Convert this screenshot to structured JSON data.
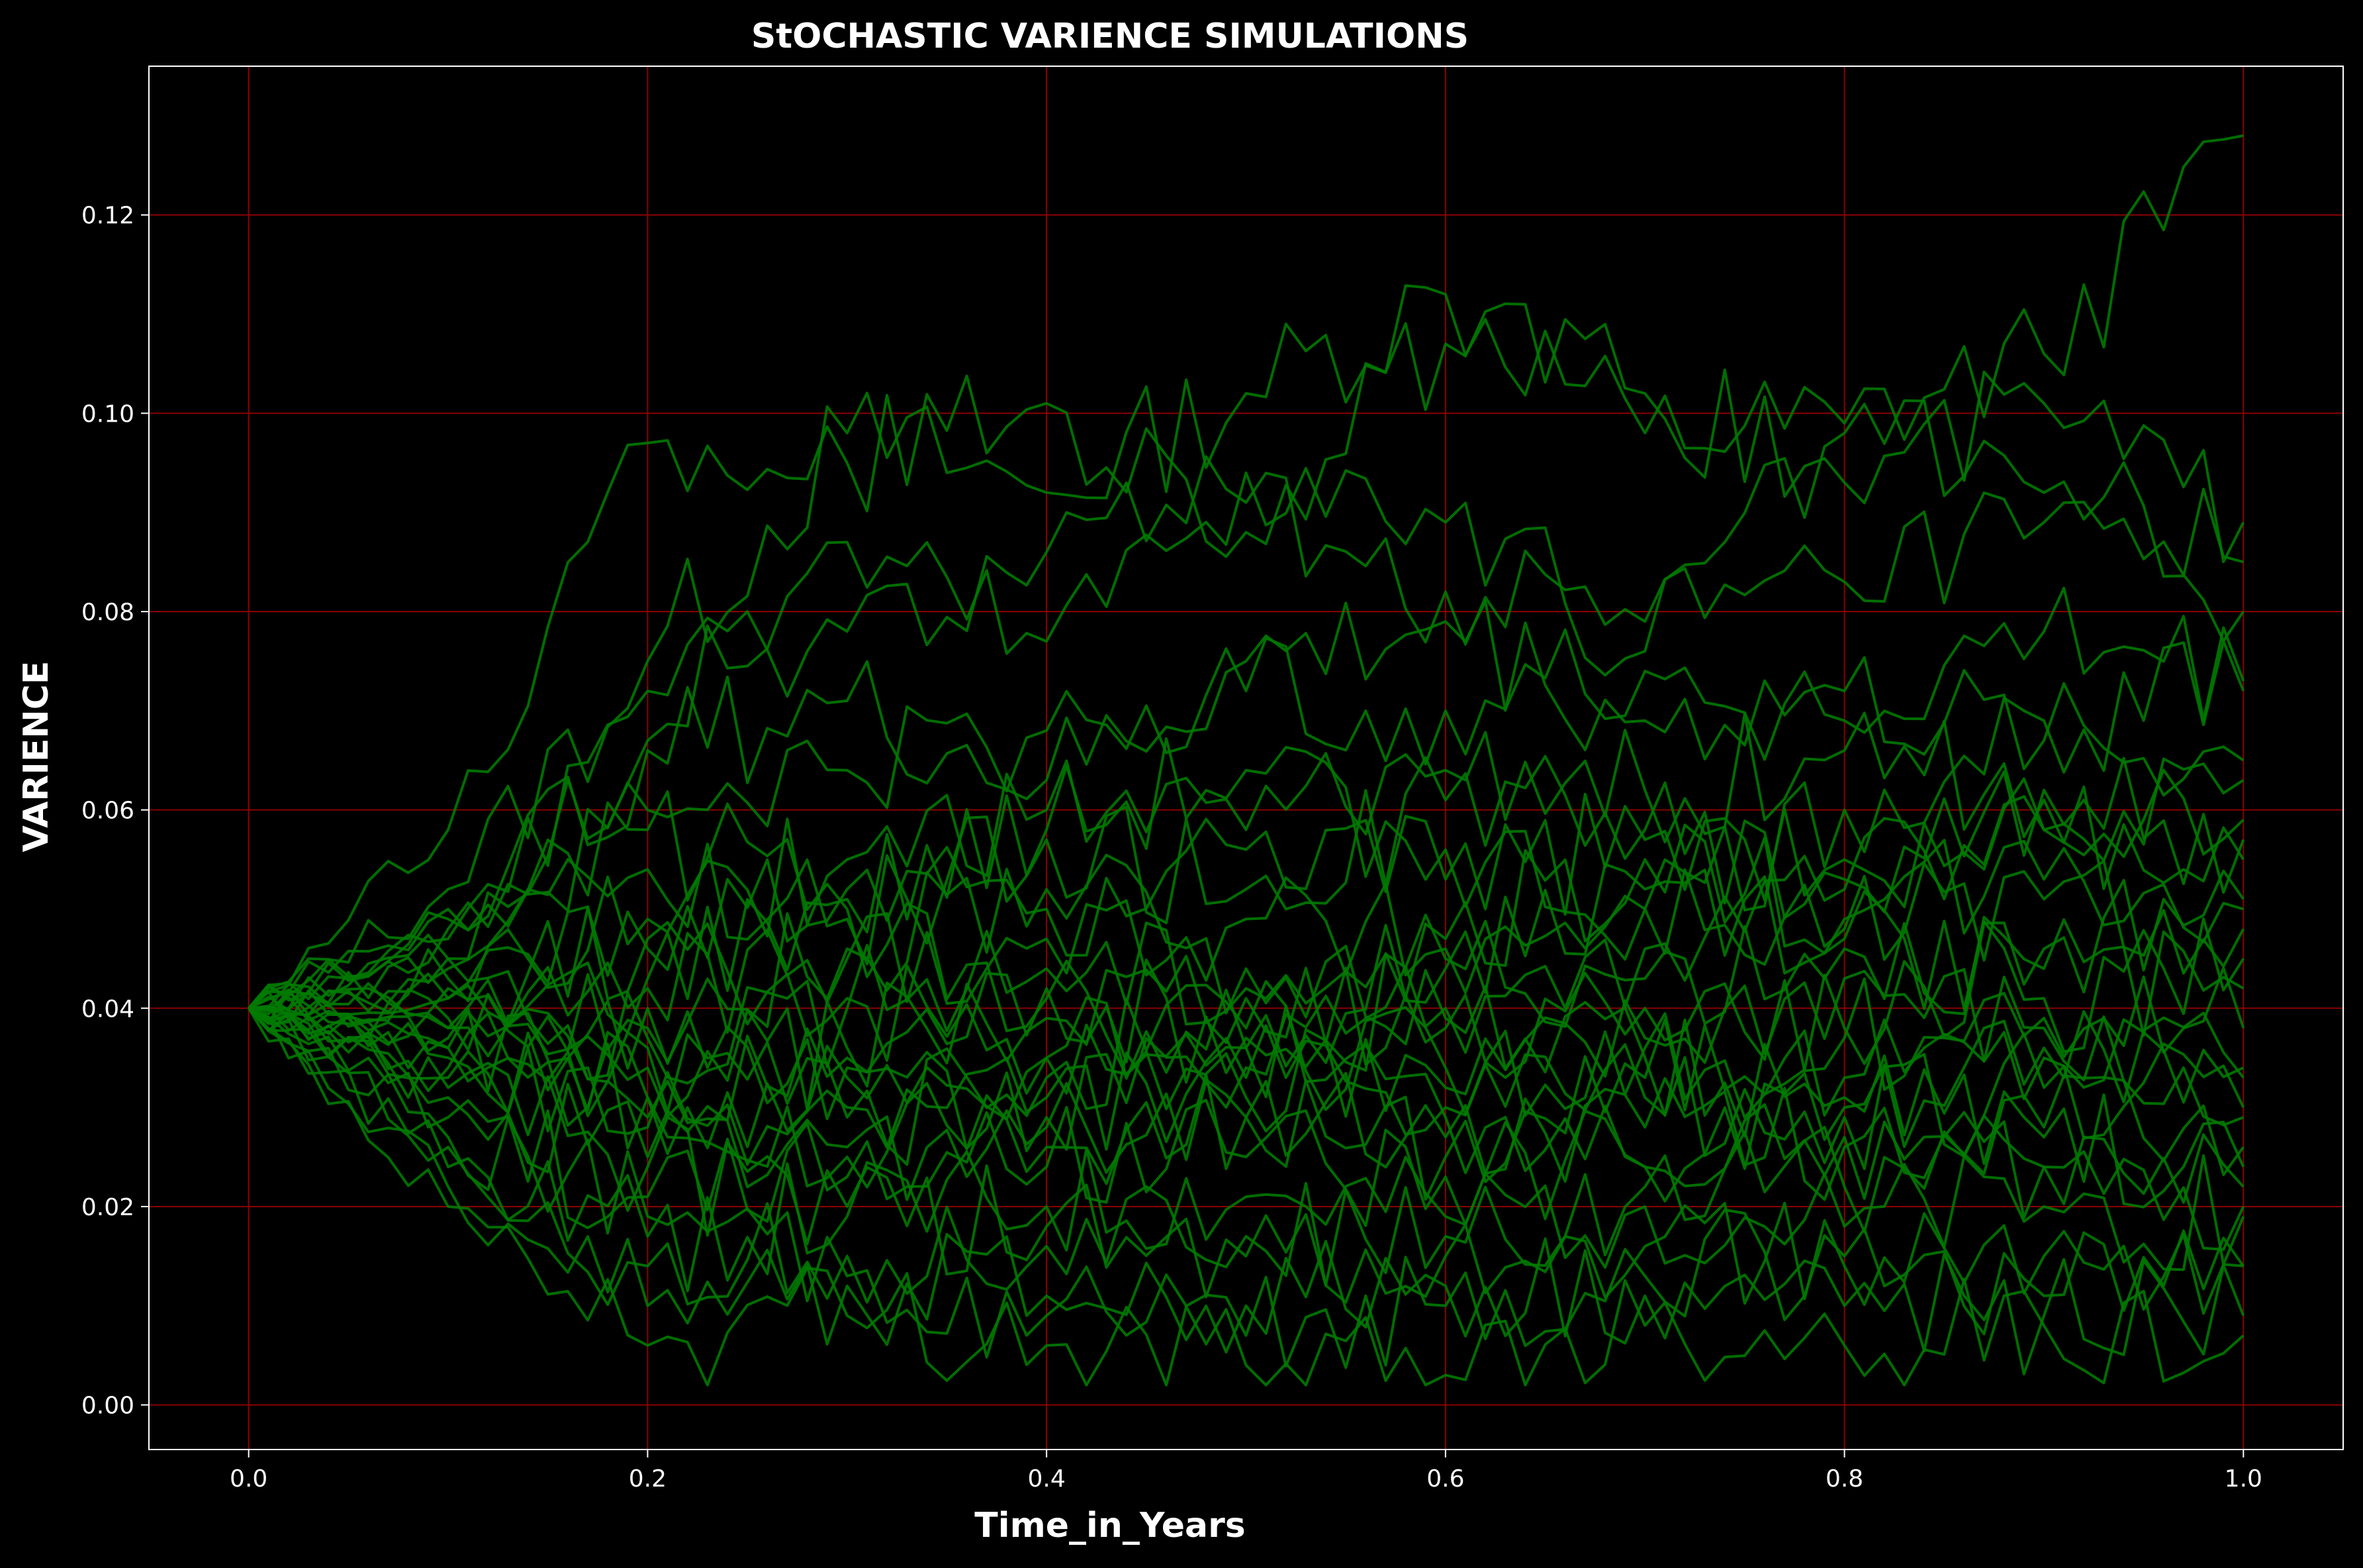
{
  "chart_data": {
    "type": "line",
    "title": "StOCHASTIC VARIENCE SIMULATIONS",
    "xlabel": "Time_in_Years",
    "ylabel": "VARIENCE",
    "xlim": [
      -0.05,
      1.05
    ],
    "ylim": [
      -0.0045,
      0.135
    ],
    "x_ticks": [
      0.0,
      0.2,
      0.4,
      0.6,
      0.8,
      1.0
    ],
    "x_tick_labels": [
      "0.0",
      "0.2",
      "0.4",
      "0.6",
      "0.8",
      "1.0"
    ],
    "y_ticks": [
      0.0,
      0.02,
      0.04,
      0.06,
      0.08,
      0.1,
      0.12
    ],
    "y_tick_labels": [
      "0.00",
      "0.02",
      "0.04",
      "0.06",
      "0.08",
      "0.10",
      "0.12"
    ],
    "grid": true,
    "x": [
      0.0,
      0.1,
      0.2,
      0.3,
      0.4,
      0.5,
      0.6,
      0.7,
      0.8,
      0.9,
      1.0
    ],
    "series": [
      {
        "values": [
          0.04,
          0.052,
          0.075,
          0.098,
          0.092,
          0.102,
          0.112,
          0.098,
          0.099,
          0.106,
          0.128
        ]
      },
      {
        "values": [
          0.04,
          0.058,
          0.097,
          0.095,
          0.101,
          0.088,
          0.107,
          0.102,
          0.093,
          0.101,
          0.089
        ]
      },
      {
        "values": [
          0.04,
          0.045,
          0.067,
          0.087,
          0.077,
          0.094,
          0.089,
          0.076,
          0.098,
          0.092,
          0.085
        ]
      },
      {
        "values": [
          0.04,
          0.048,
          0.06,
          0.064,
          0.068,
          0.072,
          0.07,
          0.074,
          0.069,
          0.078,
          0.073
        ]
      },
      {
        "values": [
          0.04,
          0.043,
          0.049,
          0.055,
          0.06,
          0.058,
          0.064,
          0.062,
          0.066,
          0.061,
          0.059
        ]
      },
      {
        "values": [
          0.04,
          0.041,
          0.046,
          0.052,
          0.05,
          0.056,
          0.053,
          0.057,
          0.055,
          0.058,
          0.055
        ]
      },
      {
        "values": [
          0.04,
          0.039,
          0.042,
          0.045,
          0.047,
          0.049,
          0.046,
          0.05,
          0.048,
          0.051,
          0.048
        ]
      },
      {
        "values": [
          0.04,
          0.038,
          0.037,
          0.04,
          0.044,
          0.042,
          0.045,
          0.043,
          0.046,
          0.044,
          0.042
        ]
      },
      {
        "values": [
          0.04,
          0.036,
          0.034,
          0.036,
          0.039,
          0.041,
          0.038,
          0.04,
          0.037,
          0.039,
          0.038
        ]
      },
      {
        "values": [
          0.04,
          0.035,
          0.031,
          0.033,
          0.035,
          0.036,
          0.034,
          0.036,
          0.033,
          0.035,
          0.034
        ]
      },
      {
        "values": [
          0.04,
          0.033,
          0.028,
          0.03,
          0.031,
          0.033,
          0.03,
          0.031,
          0.029,
          0.032,
          0.03
        ]
      },
      {
        "values": [
          0.04,
          0.031,
          0.025,
          0.026,
          0.028,
          0.029,
          0.027,
          0.028,
          0.026,
          0.028,
          0.026
        ]
      },
      {
        "values": [
          0.04,
          0.029,
          0.021,
          0.023,
          0.024,
          0.025,
          0.023,
          0.024,
          0.022,
          0.024,
          0.022
        ]
      },
      {
        "values": [
          0.04,
          0.026,
          0.017,
          0.019,
          0.02,
          0.021,
          0.019,
          0.02,
          0.018,
          0.02,
          0.019
        ]
      },
      {
        "values": [
          0.04,
          0.024,
          0.014,
          0.015,
          0.016,
          0.017,
          0.015,
          0.016,
          0.014,
          0.015,
          0.014
        ]
      },
      {
        "values": [
          0.04,
          0.022,
          0.01,
          0.012,
          0.011,
          0.01,
          0.012,
          0.011,
          0.01,
          0.009,
          0.009
        ]
      },
      {
        "values": [
          0.04,
          0.02,
          0.006,
          0.009,
          0.006,
          0.004,
          0.003,
          0.008,
          0.006,
          0.008,
          0.007
        ]
      },
      {
        "values": [
          0.04,
          0.027,
          0.019,
          0.013,
          0.009,
          0.007,
          0.01,
          0.013,
          0.015,
          0.011,
          0.014
        ]
      },
      {
        "values": [
          0.04,
          0.047,
          0.072,
          0.078,
          0.086,
          0.091,
          0.082,
          0.079,
          0.083,
          0.089,
          0.08
        ]
      },
      {
        "values": [
          0.04,
          0.05,
          0.066,
          0.071,
          0.063,
          0.075,
          0.079,
          0.069,
          0.072,
          0.067,
          0.065
        ]
      },
      {
        "values": [
          0.04,
          0.044,
          0.054,
          0.049,
          0.057,
          0.052,
          0.061,
          0.058,
          0.053,
          0.062,
          0.057
        ]
      },
      {
        "values": [
          0.04,
          0.037,
          0.031,
          0.025,
          0.029,
          0.034,
          0.04,
          0.046,
          0.052,
          0.058,
          0.063
        ]
      },
      {
        "values": [
          0.04,
          0.042,
          0.038,
          0.046,
          0.052,
          0.044,
          0.039,
          0.035,
          0.031,
          0.027,
          0.024
        ]
      },
      {
        "values": [
          0.04,
          0.034,
          0.04,
          0.034,
          0.026,
          0.031,
          0.044,
          0.052,
          0.047,
          0.041,
          0.045
        ]
      },
      {
        "values": [
          0.04,
          0.045,
          0.036,
          0.029,
          0.033,
          0.038,
          0.029,
          0.024,
          0.03,
          0.036,
          0.033
        ]
      },
      {
        "values": [
          0.04,
          0.032,
          0.024,
          0.02,
          0.018,
          0.015,
          0.017,
          0.022,
          0.027,
          0.024,
          0.02
        ]
      },
      {
        "values": [
          0.04,
          0.049,
          0.058,
          0.05,
          0.041,
          0.036,
          0.047,
          0.055,
          0.049,
          0.053,
          0.05
        ]
      },
      {
        "values": [
          0.04,
          0.038,
          0.043,
          0.051,
          0.058,
          0.064,
          0.056,
          0.05,
          0.06,
          0.069,
          0.072
        ]
      },
      {
        "values": [
          0.04,
          0.036,
          0.029,
          0.035,
          0.042,
          0.037,
          0.032,
          0.037,
          0.043,
          0.038,
          0.029
        ]
      },
      {
        "values": [
          0.04,
          0.041,
          0.047,
          0.041,
          0.035,
          0.029,
          0.025,
          0.033,
          0.038,
          0.046,
          0.051
        ]
      }
    ]
  },
  "colors": {
    "background": "#000000",
    "line": "#007a00",
    "grid": "#8b0000",
    "axes": "#ffffff",
    "text": "#ffffff"
  }
}
